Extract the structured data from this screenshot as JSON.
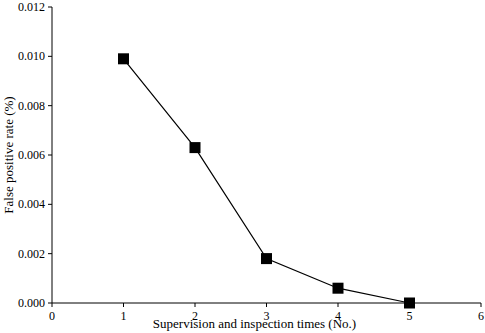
{
  "chart_data": {
    "type": "line",
    "x_label": "Supervision and inspection times (No.)",
    "y_label": "False positive rate (%)",
    "x": [
      1,
      2,
      3,
      4,
      5
    ],
    "values": [
      0.0099,
      0.0063,
      0.0018,
      0.0006,
      0.0
    ],
    "color": "#000000",
    "marker": "square",
    "line_style": "solid",
    "xlim": [
      0,
      6
    ],
    "xticks": [
      0,
      1,
      2,
      3,
      4,
      5,
      6
    ],
    "ylim": [
      0,
      0.012
    ],
    "yticks": [
      {
        "value": 0,
        "label": "0.000"
      },
      {
        "value": 0.002,
        "label": "0.002"
      },
      {
        "value": 0.004,
        "label": "0.004"
      },
      {
        "value": 0.006,
        "label": "0.006"
      },
      {
        "value": 0.008,
        "label": "0.008"
      },
      {
        "value": 0.01,
        "label": "0.010"
      },
      {
        "value": 0.012,
        "label": "0.012"
      }
    ],
    "grid": false
  }
}
